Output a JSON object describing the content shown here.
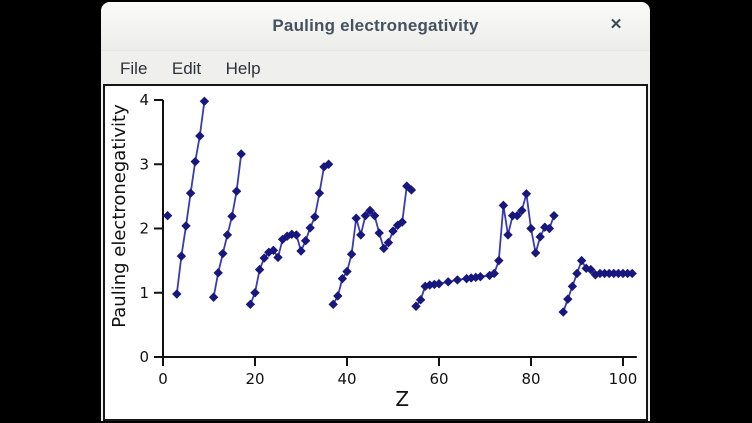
{
  "window": {
    "title": "Pauling electronegativity",
    "close_icon": "✕",
    "menu_items": [
      "File",
      "Edit",
      "Help"
    ]
  },
  "chart_data": {
    "type": "line",
    "title": "",
    "xlabel": "Z",
    "ylabel": "Pauling electronegativity",
    "xlim": [
      0,
      104
    ],
    "ylim": [
      0,
      4
    ],
    "xticks": [
      0,
      20,
      40,
      60,
      80,
      100
    ],
    "yticks": [
      0,
      1,
      2,
      3,
      4
    ],
    "grid": false,
    "legend": false,
    "marker": "diamond",
    "colors": {
      "line": "#3b3bae",
      "marker": "#17177e",
      "axis": "#111111",
      "text": "#111111"
    },
    "series_name": "Pauling electronegativity vs atomic number",
    "segments": [
      [
        [
          1,
          2.2
        ]
      ],
      [
        [
          3,
          0.98
        ],
        [
          4,
          1.57
        ],
        [
          5,
          2.04
        ],
        [
          6,
          2.55
        ],
        [
          7,
          3.04
        ],
        [
          8,
          3.44
        ],
        [
          9,
          3.98
        ]
      ],
      [
        [
          11,
          0.93
        ],
        [
          12,
          1.31
        ],
        [
          13,
          1.61
        ],
        [
          14,
          1.9
        ],
        [
          15,
          2.19
        ],
        [
          16,
          2.58
        ],
        [
          17,
          3.16
        ]
      ],
      [
        [
          19,
          0.82
        ],
        [
          20,
          1.0
        ],
        [
          21,
          1.36
        ],
        [
          22,
          1.54
        ],
        [
          23,
          1.63
        ],
        [
          24,
          1.66
        ],
        [
          25,
          1.55
        ],
        [
          26,
          1.83
        ],
        [
          27,
          1.88
        ],
        [
          28,
          1.91
        ],
        [
          29,
          1.9
        ],
        [
          30,
          1.65
        ],
        [
          31,
          1.81
        ],
        [
          32,
          2.01
        ],
        [
          33,
          2.18
        ],
        [
          34,
          2.55
        ],
        [
          35,
          2.96
        ],
        [
          36,
          3.0
        ]
      ],
      [
        [
          37,
          0.82
        ],
        [
          38,
          0.95
        ],
        [
          39,
          1.22
        ],
        [
          40,
          1.33
        ],
        [
          41,
          1.6
        ],
        [
          42,
          2.16
        ],
        [
          43,
          1.9
        ],
        [
          44,
          2.2
        ],
        [
          45,
          2.28
        ],
        [
          46,
          2.2
        ],
        [
          47,
          1.93
        ],
        [
          48,
          1.69
        ],
        [
          49,
          1.78
        ],
        [
          50,
          1.96
        ],
        [
          51,
          2.05
        ],
        [
          52,
          2.1
        ],
        [
          53,
          2.66
        ],
        [
          54,
          2.6
        ]
      ],
      [
        [
          55,
          0.79
        ],
        [
          56,
          0.89
        ],
        [
          57,
          1.1
        ],
        [
          58,
          1.12
        ],
        [
          59,
          1.13
        ],
        [
          60,
          1.14
        ],
        [
          62,
          1.17
        ],
        [
          64,
          1.2
        ],
        [
          66,
          1.22
        ],
        [
          67,
          1.23
        ],
        [
          68,
          1.24
        ],
        [
          69,
          1.25
        ],
        [
          71,
          1.27
        ],
        [
          72,
          1.3
        ],
        [
          73,
          1.5
        ],
        [
          74,
          2.36
        ],
        [
          75,
          1.9
        ],
        [
          76,
          2.2
        ],
        [
          77,
          2.2
        ],
        [
          78,
          2.28
        ],
        [
          79,
          2.54
        ],
        [
          80,
          2.0
        ],
        [
          81,
          1.62
        ],
        [
          82,
          1.87
        ],
        [
          83,
          2.02
        ],
        [
          84,
          2.0
        ],
        [
          85,
          2.2
        ]
      ],
      [
        [
          87,
          0.7
        ],
        [
          88,
          0.9
        ],
        [
          89,
          1.1
        ],
        [
          90,
          1.3
        ],
        [
          91,
          1.5
        ],
        [
          92,
          1.38
        ],
        [
          93,
          1.36
        ],
        [
          94,
          1.28
        ],
        [
          95,
          1.3
        ],
        [
          96,
          1.3
        ],
        [
          97,
          1.3
        ],
        [
          98,
          1.3
        ],
        [
          99,
          1.3
        ],
        [
          100,
          1.3
        ],
        [
          101,
          1.3
        ],
        [
          102,
          1.3
        ]
      ]
    ]
  }
}
